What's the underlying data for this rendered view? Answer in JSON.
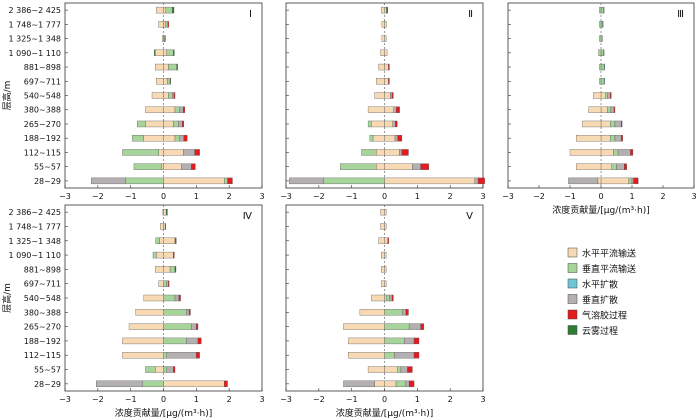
{
  "chart_data": {
    "type": "bar",
    "layout": "horizontal stacked diverging bars, 5 panels",
    "ylabel": "层高/m",
    "xlabel": "浓度贡献量/[μg/(m³·h)]",
    "xlim": [
      -3,
      3
    ],
    "xticks": [
      -3,
      -2,
      -1,
      0,
      1,
      2,
      3
    ],
    "categories": [
      "2 386~2 425",
      "1 748~1 777",
      "1 325~1 348",
      "1 090~1 110",
      "881~898",
      "697~711",
      "540~548",
      "380~388",
      "265~270",
      "188~192",
      "112~115",
      "55~57",
      "28~29"
    ],
    "legend": {
      "position": "right-bottom",
      "items": [
        {
          "key": "hadv",
          "name": "水平平流输送",
          "color": "#f7d9b4"
        },
        {
          "key": "vadv",
          "name": "垂直平流输送",
          "color": "#a6d49a"
        },
        {
          "key": "hdif",
          "name": "水平扩散",
          "color": "#6cc6d3"
        },
        {
          "key": "vdif",
          "name": "垂直扩散",
          "color": "#b4b0b2"
        },
        {
          "key": "aero",
          "name": "气溶胶过程",
          "color": "#e41a1c"
        },
        {
          "key": "cloud",
          "name": "云雾过程",
          "color": "#2e7d32"
        }
      ]
    },
    "panels": [
      {
        "label": "Ⅰ",
        "pos": [
          {
            "hadv": 0.07,
            "vadv": 0.2,
            "cloud": 0.05
          },
          {
            "hadv": 0.05,
            "vadv": 0.08,
            "aero": 0.03
          },
          {
            "vadv": 0.04,
            "cloud": 0.02
          },
          {
            "hadv": 0.1,
            "vadv": 0.2,
            "cloud": 0.03
          },
          {
            "hadv": 0.15,
            "vadv": 0.25,
            "cloud": 0.03
          },
          {
            "hadv": 0.12,
            "vadv": 0.08,
            "cloud": 0.02
          },
          {
            "hadv": 0.15,
            "vadv": 0.12,
            "vdif": 0.05,
            "aero": 0.03
          },
          {
            "hadv": 0.35,
            "vadv": 0.15,
            "vdif": 0.1,
            "aero": 0.05
          },
          {
            "hadv": 0.3,
            "vadv": 0.15,
            "vdif": 0.12,
            "aero": 0.05
          },
          {
            "hadv": 0.35,
            "vadv": 0.15,
            "vdif": 0.12,
            "aero": 0.1
          },
          {
            "hadv": 0.6,
            "vdif": 0.35,
            "aero": 0.15
          },
          {
            "hadv": 0.55,
            "vdif": 0.3,
            "aero": 0.12
          },
          {
            "hadv": 1.85,
            "vadv": 0.1,
            "aero": 0.15
          }
        ],
        "neg": [
          {
            "hadv": 0.22
          },
          {
            "hadv": 0.15
          },
          {
            "hadv": 0.04
          },
          {
            "hadv": 0.25,
            "cloud": 0.03
          },
          {
            "hadv": 0.25
          },
          {
            "hadv": 0.22
          },
          {
            "hadv": 0.35
          },
          {
            "hadv": 0.55
          },
          {
            "hadv": 0.55,
            "vadv": 0.25
          },
          {
            "hadv": 0.6,
            "vadv": 0.35
          },
          {
            "hadv": 0.15,
            "vadv": 1.1
          },
          {
            "hadv": 0.05,
            "vadv": 0.85
          },
          {
            "vadv": 1.15,
            "vdif": 1.05
          }
        ]
      },
      {
        "label": "Ⅱ",
        "pos": [
          {
            "hadv": 0.06,
            "cloud": 0.04
          },
          {
            "hadv": 0.06
          },
          {
            "hadv": 0.05
          },
          {
            "hadv": 0.08
          },
          {
            "hadv": 0.12,
            "aero": 0.03
          },
          {
            "hadv": 0.12,
            "aero": 0.03
          },
          {
            "hadv": 0.18,
            "vdif": 0.05,
            "aero": 0.04
          },
          {
            "hadv": 0.28,
            "vdif": 0.08,
            "aero": 0.1
          },
          {
            "hadv": 0.25,
            "vdif": 0.08,
            "aero": 0.06
          },
          {
            "hadv": 0.32,
            "vdif": 0.08,
            "aero": 0.13
          },
          {
            "hadv": 0.45,
            "vdif": 0.08,
            "aero": 0.2
          },
          {
            "hadv": 0.85,
            "vdif": 0.25,
            "aero": 0.25
          },
          {
            "hadv": 2.75,
            "vdif": 0.1,
            "aero": 0.2
          }
        ],
        "neg": [
          {
            "hadv": 0.1
          },
          {
            "hadv": 0.08
          },
          {
            "hadv": 0.08
          },
          {
            "hadv": 0.12
          },
          {
            "hadv": 0.18
          },
          {
            "hadv": 0.25
          },
          {
            "hadv": 0.3
          },
          {
            "hadv": 0.5
          },
          {
            "hadv": 0.4,
            "vadv": 0.1
          },
          {
            "hadv": 0.35,
            "vadv": 0.1
          },
          {
            "hadv": 0.25,
            "vadv": 0.45
          },
          {
            "hadv": 0.25,
            "vadv": 1.1
          },
          {
            "vadv": 1.85,
            "vdif": 1.05
          }
        ]
      },
      {
        "label": "Ⅲ",
        "pos": [
          {
            "vadv": 0.07,
            "hdif": 0.03
          },
          {
            "vadv": 0.05,
            "hdif": 0.02
          },
          {
            "vadv": 0.05
          },
          {
            "vadv": 0.08,
            "hdif": 0.02
          },
          {
            "vadv": 0.1,
            "hdif": 0.02
          },
          {
            "vadv": 0.1,
            "hdif": 0.02
          },
          {
            "hadv": 0.15,
            "vadv": 0.05,
            "vdif": 0.1,
            "aero": 0.03
          },
          {
            "hadv": 0.2,
            "vadv": 0.12,
            "vdif": 0.1,
            "aero": 0.03
          },
          {
            "hadv": 0.3,
            "vadv": 0.15,
            "vdif": 0.2,
            "aero": 0.03
          },
          {
            "hadv": 0.3,
            "vadv": 0.15,
            "vdif": 0.2,
            "aero": 0.05
          },
          {
            "hadv": 0.4,
            "vadv": 0.15,
            "vdif": 0.4,
            "aero": 0.08
          },
          {
            "hadv": 0.35,
            "vadv": 0.15,
            "vdif": 0.25,
            "aero": 0.08
          },
          {
            "hadv": 0.9,
            "vadv": 0.1,
            "vdif": 0.05,
            "aero": 0.15
          }
        ],
        "neg": [
          {
            "vadv": 0.05
          },
          {
            "vadv": 0.05
          },
          {
            "vadv": 0.05
          },
          {
            "vadv": 0.08
          },
          {
            "vadv": 0.05
          },
          {
            "vadv": 0.05
          },
          {
            "hadv": 0.25
          },
          {
            "hadv": 0.4
          },
          {
            "hadv": 0.6
          },
          {
            "hadv": 0.8
          },
          {
            "hadv": 1.0
          },
          {
            "hadv": 0.8
          },
          {
            "hadv": 0.1,
            "vdif": 0.95
          }
        ]
      },
      {
        "label": "Ⅳ",
        "pos": [
          {
            "hadv": 0.08,
            "cloud": 0.04
          },
          {
            "hadv": 0.05,
            "aero": 0.02
          },
          {
            "hadv": 0.35,
            "cloud": 0.04
          },
          {
            "hadv": 0.3,
            "aero": 0.03
          },
          {
            "hadv": 0.2,
            "vadv": 0.15,
            "aero": 0.03
          },
          {
            "vadv": 0.1,
            "vdif": 0.05,
            "aero": 0.02
          },
          {
            "vadv": 0.35,
            "vdif": 0.12,
            "aero": 0.05
          },
          {
            "vadv": 0.7,
            "vdif": 0.08,
            "aero": 0.04
          },
          {
            "vadv": 0.85,
            "vdif": 0.15,
            "aero": 0.05
          },
          {
            "vadv": 0.7,
            "vdif": 0.35,
            "aero": 0.1
          },
          {
            "vadv": 0.1,
            "vdif": 0.9,
            "aero": 0.1
          },
          {
            "vadv": 0.1,
            "vdif": 0.2,
            "aero": 0.05
          },
          {
            "hadv": 1.85,
            "aero": 0.1
          }
        ],
        "neg": [
          {
            "hadv": 0.02
          },
          {
            "hadv": 0.1
          },
          {
            "hadv": 0.12,
            "vadv": 0.12
          },
          {
            "hadv": 0.22,
            "vadv": 0.1
          },
          {
            "hadv": 0.25
          },
          {
            "hadv": 0.15
          },
          {
            "hadv": 0.6
          },
          {
            "hadv": 0.85
          },
          {
            "hadv": 1.05
          },
          {
            "hadv": 1.25
          },
          {
            "hadv": 1.25
          },
          {
            "hadv": 0.25,
            "vadv": 0.3
          },
          {
            "vadv": 0.65,
            "vdif": 1.4
          }
        ]
      },
      {
        "label": "Ⅴ",
        "pos": [
          {
            "hadv": 0.05
          },
          {
            "hadv": 0.05
          },
          {
            "hadv": 0.1,
            "aero": 0.03
          },
          {
            "hadv": 0.05
          },
          {
            "hadv": 0.05
          },
          {
            "hadv": 0.05
          },
          {
            "hadv": 0.05,
            "vadv": 0.1,
            "vdif": 0.08,
            "aero": 0.04
          },
          {
            "vadv": 0.55,
            "vdif": 0.1,
            "aero": 0.08
          },
          {
            "vadv": 0.75,
            "vdif": 0.35,
            "aero": 0.1
          },
          {
            "vadv": 0.6,
            "vdif": 0.3,
            "aero": 0.15
          },
          {
            "vadv": 0.3,
            "vdif": 0.6,
            "aero": 0.15
          },
          {
            "hadv": 0.4,
            "vadv": 0.1,
            "vdif": 0.2,
            "aero": 0.15
          },
          {
            "hadv": 0.35,
            "vadv": 0.3,
            "vdif": 0.1,
            "aero": 0.15
          }
        ],
        "neg": [
          {
            "hadv": 0.12
          },
          {
            "hadv": 0.12
          },
          {
            "hadv": 0.18
          },
          {
            "hadv": 0.1
          },
          {
            "hadv": 0.1
          },
          {
            "hadv": 0.1
          },
          {
            "hadv": 0.4
          },
          {
            "hadv": 0.75
          },
          {
            "hadv": 1.25
          },
          {
            "hadv": 1.1
          },
          {
            "hadv": 1.1
          },
          {
            "hadv": 0.5
          },
          {
            "hadv": 0.3,
            "vdif": 0.95
          }
        ]
      }
    ]
  }
}
